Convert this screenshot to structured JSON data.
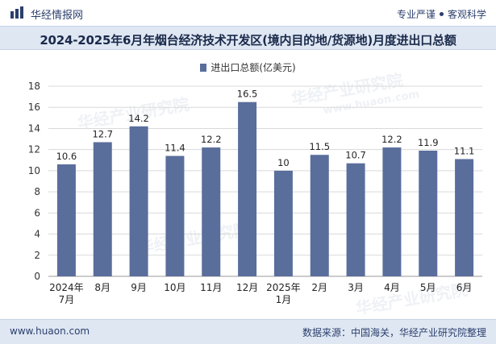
{
  "header": {
    "site_name": "华经情报网",
    "tagline_left": "专业严谨",
    "tagline_right": "客观科学"
  },
  "footer": {
    "website": "www.huaon.com",
    "source": "数据来源：中国海关，华经产业研究院整理"
  },
  "watermarks": [
    "华经产业研究院",
    "www.huaon.com"
  ],
  "colors": {
    "bar": "#5a6e9c",
    "title_band": "#dfe7f3",
    "brand": "#2b3f6c"
  },
  "icons": {
    "logo": "bar-chart-logo-icon"
  },
  "chart_data": {
    "type": "bar",
    "title": "2024-2025年6月年烟台经济技术开发区(境内目的地/货源地)月度进出口总额",
    "legend": [
      "进出口总额(亿美元)"
    ],
    "categories": [
      "2024年\n7月",
      "8月",
      "9月",
      "10月",
      "11月",
      "12月",
      "2025年\n1月",
      "2月",
      "3月",
      "4月",
      "5月",
      "6月"
    ],
    "series": [
      {
        "name": "进出口总额(亿美元)",
        "values": [
          10.6,
          12.7,
          14.2,
          11.4,
          12.2,
          16.5,
          10,
          11.5,
          10.7,
          12.2,
          11.9,
          11.1
        ]
      }
    ],
    "value_labels": [
      "10.6",
      "12.7",
      "14.2",
      "11.4",
      "12.2",
      "16.5",
      "10",
      "11.5",
      "10.7",
      "12.2",
      "11.9",
      "11.1"
    ],
    "ylim": [
      0,
      18
    ],
    "yticks": [
      0,
      2,
      4,
      6,
      8,
      10,
      12,
      14,
      16,
      18
    ],
    "xlabel": "",
    "ylabel": "",
    "grid": true
  }
}
